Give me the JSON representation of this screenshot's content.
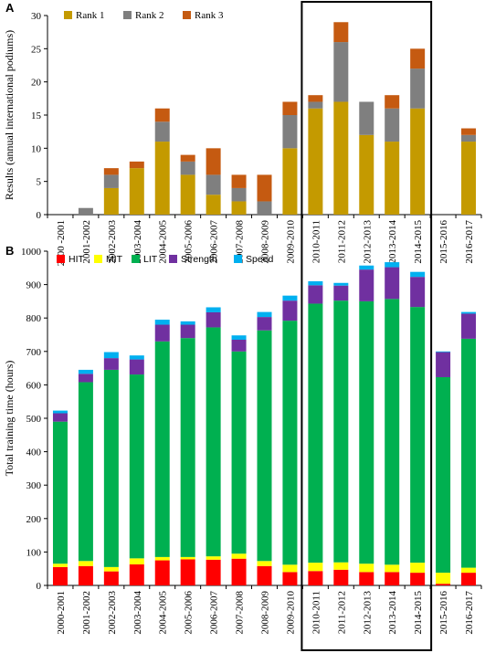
{
  "chart_data": [
    {
      "type": "bar",
      "stacked": true,
      "panel_label": "A",
      "ylabel": "Results (annual international podiums)",
      "ylim": [
        0,
        30
      ],
      "yticks": [
        0,
        5,
        10,
        15,
        20,
        25,
        30
      ],
      "categories": [
        "2000 -2001",
        "2001-2002",
        "2002-2003",
        "2003-2004",
        "2004-2005",
        "2005-2006",
        "2006-2007",
        "2007-2008",
        "2008-2009",
        "2009-2010",
        "2010-2011",
        "2011-2012",
        "2012-2013",
        "2013-2014",
        "2014-2015",
        "2015-2016",
        "2016-2017"
      ],
      "legend_position": "top-left",
      "series": [
        {
          "name": "Rank 1",
          "color": "#c49a00",
          "values": [
            0,
            0,
            4,
            7,
            11,
            6,
            3,
            2,
            0,
            10,
            16,
            17,
            12,
            11,
            16,
            0,
            11
          ]
        },
        {
          "name": "Rank 2",
          "color": "#7f7f7f",
          "values": [
            0,
            1,
            2,
            0,
            3,
            2,
            3,
            2,
            2,
            5,
            1,
            9,
            5,
            5,
            6,
            0,
            1
          ]
        },
        {
          "name": "Rank 3",
          "color": "#c55a11",
          "values": [
            0,
            0,
            1,
            1,
            2,
            1,
            4,
            2,
            4,
            2,
            1,
            3,
            0,
            2,
            3,
            0,
            1
          ]
        }
      ]
    },
    {
      "type": "bar",
      "stacked": true,
      "panel_label": "B",
      "ylabel": "Total training time (hours)",
      "ylim": [
        0,
        1000
      ],
      "yticks": [
        0,
        100,
        200,
        300,
        400,
        500,
        600,
        700,
        800,
        900,
        1000
      ],
      "categories": [
        "2000-2001",
        "2001-2002",
        "2002-2003",
        "2003-2004",
        "2004-2005",
        "2005-2006",
        "2006-2007",
        "2007-2008",
        "2008-2009",
        "2009-2010",
        "2010-2011",
        "2011-2012",
        "2012-2013",
        "2013-2014",
        "2014-2015",
        "2015-2016",
        "2016-2017"
      ],
      "legend_position": "top-left",
      "series": [
        {
          "name": "HIT",
          "color": "#ff0000",
          "values": [
            55,
            58,
            42,
            63,
            75,
            78,
            77,
            80,
            58,
            40,
            43,
            47,
            40,
            40,
            38,
            5,
            38
          ]
        },
        {
          "name": "MIT",
          "color": "#ffff00",
          "values": [
            10,
            15,
            13,
            18,
            10,
            7,
            10,
            15,
            15,
            22,
            25,
            22,
            25,
            22,
            30,
            33,
            15
          ]
        },
        {
          "name": "LIT",
          "color": "#00b050",
          "values": [
            425,
            535,
            590,
            550,
            645,
            655,
            685,
            605,
            690,
            730,
            775,
            783,
            785,
            795,
            765,
            585,
            685
          ]
        },
        {
          "name": "Strength",
          "color": "#7030a0",
          "values": [
            25,
            25,
            35,
            45,
            50,
            40,
            45,
            35,
            40,
            60,
            55,
            45,
            95,
            95,
            90,
            75,
            75
          ]
        },
        {
          "name": "Speed",
          "color": "#00b0f0",
          "values": [
            8,
            12,
            18,
            12,
            15,
            10,
            15,
            13,
            15,
            15,
            12,
            8,
            12,
            15,
            15,
            2,
            5
          ]
        }
      ]
    }
  ]
}
